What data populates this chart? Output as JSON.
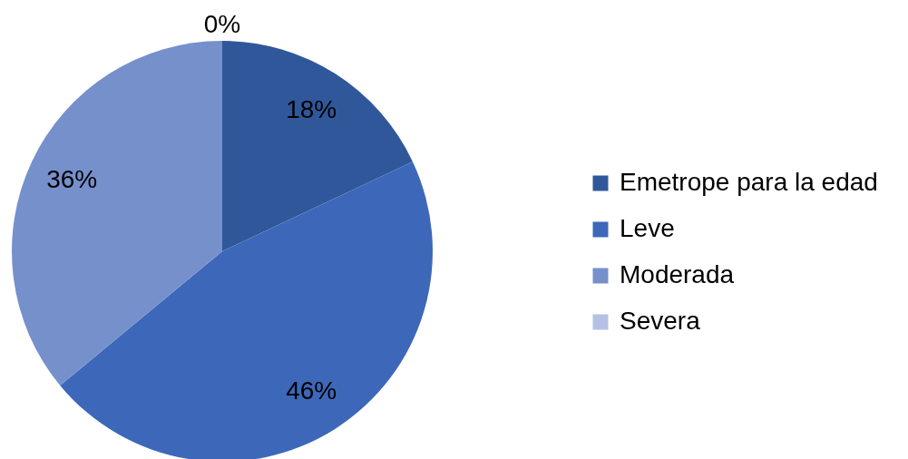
{
  "chart_data": {
    "type": "pie",
    "categories": [
      "Emetrope para la edad",
      "Leve",
      "Moderada",
      "Severa"
    ],
    "values": [
      18,
      46,
      36,
      0
    ],
    "colors": [
      "#30579a",
      "#3d68ba",
      "#7690cc",
      "#b5c1e3"
    ],
    "value_labels": [
      "18%",
      "46%",
      "36%",
      "0%"
    ],
    "legend": "right"
  }
}
